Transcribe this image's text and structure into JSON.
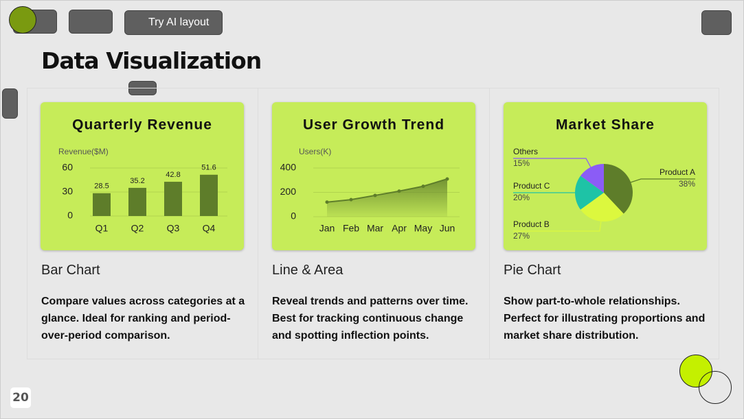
{
  "toolbar": {
    "ai_button": "Try AI layout"
  },
  "title": "Data Visualization",
  "cards": [
    {
      "chart": {
        "type": "bar",
        "title": "Quarterly Revenue",
        "y_label": "Revenue($M)",
        "categories": [
          "Q1",
          "Q2",
          "Q3",
          "Q4"
        ],
        "values": [
          28.5,
          35.2,
          42.8,
          51.6
        ],
        "color": "#5e7d2a",
        "ylim": [
          0,
          60
        ],
        "yticks": [
          0,
          30,
          60
        ],
        "grid": true
      },
      "name": "Bar Chart",
      "description": "Compare values across categories at a glance. Ideal for ranking and period-over-period comparison."
    },
    {
      "chart": {
        "type": "line",
        "title": "User Growth Trend",
        "y_label": "Users(K)",
        "categories": [
          "Jan",
          "Feb",
          "Mar",
          "Apr",
          "May",
          "Jun"
        ],
        "values": [
          120,
          140,
          175,
          210,
          250,
          310
        ],
        "color": "#5e7d2a",
        "ylim": [
          0,
          400
        ],
        "yticks": [
          0,
          200,
          400
        ],
        "grid": true
      },
      "name": "Line & Area",
      "description": "Reveal trends and patterns over time. Best for tracking continuous change and spotting inflection points."
    },
    {
      "chart": {
        "type": "pie",
        "title": "Market Share",
        "categories": [
          "Product A",
          "Product B",
          "Product C",
          "Others"
        ],
        "values": [
          38,
          27,
          20,
          15
        ],
        "value_labels": [
          "38%",
          "27%",
          "20%",
          "15%"
        ],
        "colors": [
          "#5e7d2a",
          "#dcf83e",
          "#1ec3a6",
          "#8b5cf6"
        ]
      },
      "name": "Pie Chart",
      "description": "Show part-to-whole relationships. Perfect for illustrating proportions and market share distribution."
    }
  ],
  "page_number": 20
}
